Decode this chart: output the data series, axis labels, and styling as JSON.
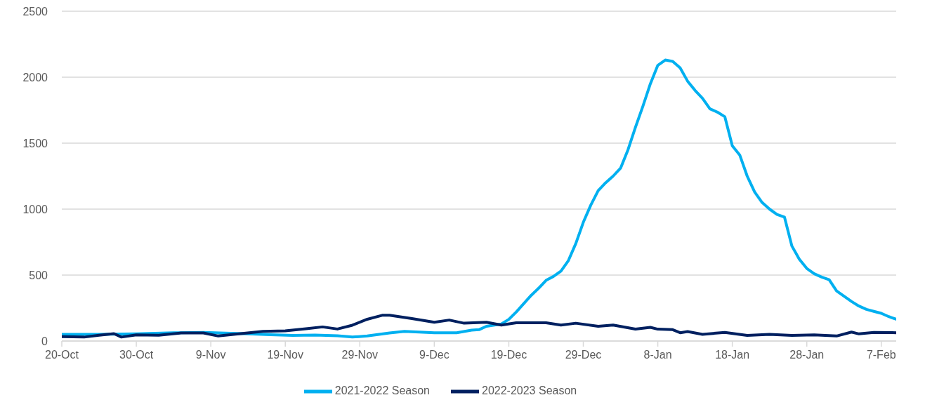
{
  "chart_data": {
    "type": "line",
    "xlim": [
      "2022-10-20",
      "2023-02-09"
    ],
    "xticks": [
      {
        "value": "2022-10-20",
        "label": "20-Oct"
      },
      {
        "value": "2022-10-30",
        "label": "30-Oct"
      },
      {
        "value": "2022-11-09",
        "label": "9-Nov"
      },
      {
        "value": "2022-11-19",
        "label": "19-Nov"
      },
      {
        "value": "2022-11-29",
        "label": "29-Nov"
      },
      {
        "value": "2022-12-09",
        "label": "9-Dec"
      },
      {
        "value": "2022-12-19",
        "label": "19-Dec"
      },
      {
        "value": "2022-12-29",
        "label": "29-Dec"
      },
      {
        "value": "2023-01-08",
        "label": "8-Jan"
      },
      {
        "value": "2023-01-18",
        "label": "18-Jan"
      },
      {
        "value": "2023-01-28",
        "label": "28-Jan"
      },
      {
        "value": "2023-02-07",
        "label": "7-Feb"
      }
    ],
    "ylim": [
      0,
      2500
    ],
    "yticks": [
      0,
      500,
      1000,
      1500,
      2000,
      2500
    ],
    "grid": "y",
    "legend": "bottom",
    "marker": "none",
    "line_style": "solid",
    "series": [
      {
        "name": "2021-2022 Season",
        "color": "#00b0f0",
        "x": [
          "2022-10-20",
          "2022-10-25",
          "2022-10-30",
          "2022-11-04",
          "2022-11-08",
          "2022-11-11",
          "2022-11-14",
          "2022-11-17",
          "2022-11-20",
          "2022-11-23",
          "2022-11-26",
          "2022-11-28",
          "2022-11-30",
          "2022-12-03",
          "2022-12-05",
          "2022-12-07",
          "2022-12-09",
          "2022-12-12",
          "2022-12-14",
          "2022-12-15",
          "2022-12-16",
          "2022-12-18",
          "2022-12-19",
          "2022-12-20",
          "2022-12-22",
          "2022-12-23",
          "2022-12-24",
          "2022-12-25",
          "2022-12-26",
          "2022-12-27",
          "2022-12-28",
          "2022-12-29",
          "2022-12-30",
          "2022-12-31",
          "2023-01-01",
          "2023-01-02",
          "2023-01-03",
          "2023-01-04",
          "2023-01-05",
          "2023-01-06",
          "2023-01-07",
          "2023-01-08",
          "2023-01-09",
          "2023-01-10",
          "2023-01-11",
          "2023-01-12",
          "2023-01-13",
          "2023-01-14",
          "2023-01-15",
          "2023-01-16",
          "2023-01-17",
          "2023-01-18",
          "2023-01-19",
          "2023-01-20",
          "2023-01-21",
          "2023-01-22",
          "2023-01-23",
          "2023-01-24",
          "2023-01-25",
          "2023-01-26",
          "2023-01-27",
          "2023-01-28",
          "2023-01-29",
          "2023-01-30",
          "2023-01-31",
          "2023-02-01",
          "2023-02-02",
          "2023-02-03",
          "2023-02-04",
          "2023-02-05",
          "2023-02-06",
          "2023-02-07",
          "2023-02-08",
          "2023-02-09"
        ],
        "values": [
          50,
          50,
          55,
          62,
          65,
          60,
          55,
          48,
          42,
          45,
          40,
          30,
          38,
          61,
          73,
          68,
          63,
          63,
          82,
          86,
          112,
          129,
          164,
          220,
          346,
          400,
          460,
          490,
          530,
          610,
          740,
          900,
          1030,
          1140,
          1200,
          1250,
          1310,
          1450,
          1620,
          1780,
          1950,
          2090,
          2130,
          2120,
          2070,
          1970,
          1900,
          1840,
          1760,
          1735,
          1700,
          1480,
          1410,
          1250,
          1130,
          1050,
          1000,
          960,
          940,
          720,
          620,
          550,
          510,
          485,
          465,
          380,
          340,
          300,
          265,
          240,
          225,
          210,
          185,
          165
        ]
      },
      {
        "name": "2022-2023 Season",
        "color": "#002060",
        "x": [
          "2022-10-20",
          "2022-10-23",
          "2022-10-25",
          "2022-10-27",
          "2022-10-28",
          "2022-10-30",
          "2022-11-02",
          "2022-11-05",
          "2022-11-08",
          "2022-11-10",
          "2022-11-13",
          "2022-11-16",
          "2022-11-19",
          "2022-11-22",
          "2022-11-24",
          "2022-11-26",
          "2022-11-28",
          "2022-11-30",
          "2022-12-02",
          "2022-12-03",
          "2022-12-06",
          "2022-12-09",
          "2022-12-11",
          "2022-12-13",
          "2022-12-16",
          "2022-12-18",
          "2022-12-20",
          "2022-12-24",
          "2022-12-26",
          "2022-12-28",
          "2022-12-31",
          "2023-01-02",
          "2023-01-05",
          "2023-01-07",
          "2023-01-08",
          "2023-01-10",
          "2023-01-11",
          "2023-01-12",
          "2023-01-14",
          "2023-01-17",
          "2023-01-20",
          "2023-01-23",
          "2023-01-26",
          "2023-01-29",
          "2023-02-01",
          "2023-02-03",
          "2023-02-04",
          "2023-02-06",
          "2023-02-09"
        ],
        "values": [
          33,
          30,
          44,
          56,
          30,
          47,
          44,
          61,
          61,
          38,
          56,
          73,
          77,
          94,
          107,
          91,
          120,
          165,
          195,
          196,
          170,
          142,
          159,
          135,
          142,
          121,
          138,
          138,
          121,
          135,
          112,
          121,
          90,
          104,
          90,
          86,
          63,
          72,
          51,
          65,
          42,
          51,
          42,
          47,
          38,
          68,
          54,
          65,
          63
        ]
      }
    ]
  }
}
